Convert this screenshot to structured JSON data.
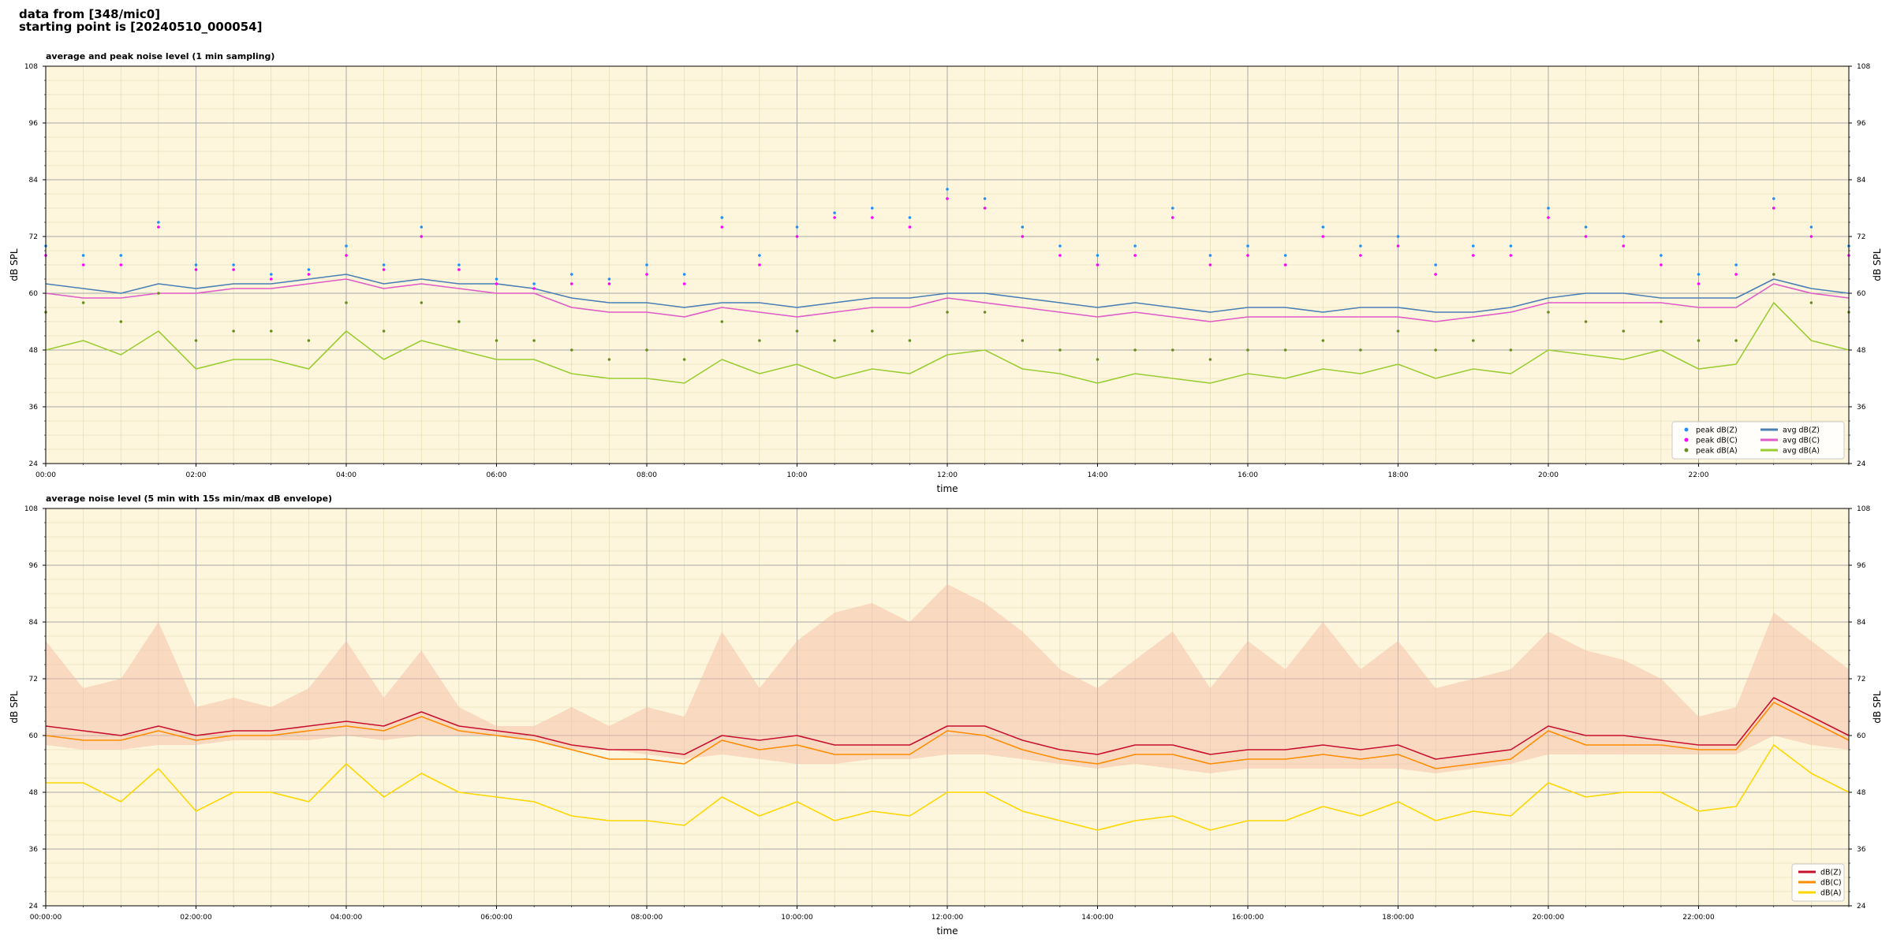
{
  "header": {
    "line1": "data from [348/mic0]",
    "line2": "starting point is [20240510_000054]"
  },
  "chart_data": [
    {
      "type": "line",
      "title": "average and peak noise level (1 min sampling)",
      "xlabel": "time",
      "ylabel": "dB SPL",
      "xlim": [
        0,
        24
      ],
      "ylim": [
        24,
        108
      ],
      "yticks": [
        24,
        36,
        48,
        60,
        72,
        84,
        96,
        108
      ],
      "xtick_labels": [
        "00:00",
        "02:00",
        "04:00",
        "06:00",
        "08:00",
        "10:00",
        "12:00",
        "14:00",
        "16:00",
        "18:00",
        "20:00",
        "22:00"
      ],
      "grid": true,
      "legend_position": "lower-right",
      "background": "#fdf6dc",
      "x": [
        0,
        0.5,
        1,
        1.5,
        2,
        2.5,
        3,
        3.5,
        4,
        4.5,
        5,
        5.5,
        6,
        6.5,
        7,
        7.5,
        8,
        8.5,
        9,
        9.5,
        10,
        10.5,
        11,
        11.5,
        12,
        12.5,
        13,
        13.5,
        14,
        14.5,
        15,
        15.5,
        16,
        16.5,
        17,
        17.5,
        18,
        18.5,
        19,
        19.5,
        20,
        20.5,
        21,
        21.5,
        22,
        22.5,
        23,
        23.5,
        24
      ],
      "series": [
        {
          "name": "avg dB(Z)",
          "style": "line",
          "color": "#4a7fb5",
          "values": [
            62,
            61,
            60,
            62,
            61,
            62,
            62,
            63,
            64,
            62,
            63,
            62,
            62,
            61,
            59,
            58,
            58,
            57,
            58,
            58,
            57,
            58,
            59,
            59,
            60,
            60,
            59,
            58,
            57,
            58,
            57,
            56,
            57,
            57,
            56,
            57,
            57,
            56,
            56,
            57,
            59,
            60,
            60,
            59,
            59,
            59,
            63,
            61,
            60
          ]
        },
        {
          "name": "avg dB(C)",
          "style": "line",
          "color": "#e05ac8",
          "values": [
            60,
            59,
            59,
            60,
            60,
            61,
            61,
            62,
            63,
            61,
            62,
            61,
            60,
            60,
            57,
            56,
            56,
            55,
            57,
            56,
            55,
            56,
            57,
            57,
            59,
            58,
            57,
            56,
            55,
            56,
            55,
            54,
            55,
            55,
            55,
            55,
            55,
            54,
            55,
            56,
            58,
            58,
            58,
            58,
            57,
            57,
            62,
            60,
            59
          ]
        },
        {
          "name": "avg dB(A)",
          "style": "line",
          "color": "#9acd32",
          "values": [
            48,
            50,
            47,
            52,
            44,
            46,
            46,
            44,
            52,
            46,
            50,
            48,
            46,
            46,
            43,
            42,
            42,
            41,
            46,
            43,
            45,
            42,
            44,
            43,
            47,
            48,
            44,
            43,
            41,
            43,
            42,
            41,
            43,
            42,
            44,
            43,
            45,
            42,
            44,
            43,
            48,
            47,
            46,
            48,
            44,
            45,
            58,
            50,
            48
          ]
        },
        {
          "name": "peak dB(Z)",
          "style": "points",
          "color": "#1e90ff",
          "values": [
            70,
            68,
            68,
            75,
            66,
            66,
            64,
            65,
            70,
            66,
            74,
            66,
            63,
            62,
            64,
            63,
            66,
            64,
            76,
            68,
            74,
            77,
            78,
            76,
            82,
            80,
            74,
            70,
            68,
            70,
            78,
            68,
            70,
            68,
            74,
            70,
            72,
            66,
            70,
            70,
            78,
            74,
            72,
            68,
            64,
            66,
            80,
            74,
            70
          ]
        },
        {
          "name": "peak dB(C)",
          "style": "points",
          "color": "#ff00ff",
          "values": [
            68,
            66,
            66,
            74,
            65,
            65,
            63,
            64,
            68,
            65,
            72,
            65,
            62,
            61,
            62,
            62,
            64,
            62,
            74,
            66,
            72,
            76,
            76,
            74,
            80,
            78,
            72,
            68,
            66,
            68,
            76,
            66,
            68,
            66,
            72,
            68,
            70,
            64,
            68,
            68,
            76,
            72,
            70,
            66,
            62,
            64,
            78,
            72,
            68
          ]
        },
        {
          "name": "peak dB(A)",
          "style": "points",
          "color": "#6b8e23",
          "values": [
            56,
            58,
            54,
            60,
            50,
            52,
            52,
            50,
            58,
            52,
            58,
            54,
            50,
            50,
            48,
            46,
            48,
            46,
            54,
            50,
            52,
            50,
            52,
            50,
            56,
            56,
            50,
            48,
            46,
            48,
            48,
            46,
            48,
            48,
            50,
            48,
            52,
            48,
            50,
            48,
            56,
            54,
            52,
            54,
            50,
            50,
            64,
            58,
            56
          ]
        }
      ],
      "legend": [
        {
          "label": "peak dB(Z)",
          "color": "#1e90ff",
          "kind": "point"
        },
        {
          "label": "peak dB(C)",
          "color": "#ff00ff",
          "kind": "point"
        },
        {
          "label": "peak dB(A)",
          "color": "#6b8e23",
          "kind": "point"
        },
        {
          "label": "avg dB(Z)",
          "color": "#4a7fb5",
          "kind": "line"
        },
        {
          "label": "avg dB(C)",
          "color": "#e05ac8",
          "kind": "line"
        },
        {
          "label": "avg dB(A)",
          "color": "#9acd32",
          "kind": "line"
        }
      ]
    },
    {
      "type": "line",
      "title": "average noise level (5 min with 15s min/max dB envelope)",
      "xlabel": "time",
      "ylabel": "dB SPL",
      "xlim": [
        0,
        24
      ],
      "ylim": [
        24,
        108
      ],
      "yticks": [
        24,
        36,
        48,
        60,
        72,
        84,
        96,
        108
      ],
      "xtick_labels": [
        "00:00:00",
        "02:00:00",
        "04:00:00",
        "06:00:00",
        "08:00:00",
        "10:00:00",
        "12:00:00",
        "14:00:00",
        "16:00:00",
        "18:00:00",
        "20:00:00",
        "22:00:00"
      ],
      "grid": true,
      "legend_position": "lower-right",
      "background": "#fdf6dc",
      "x": [
        0,
        0.5,
        1,
        1.5,
        2,
        2.5,
        3,
        3.5,
        4,
        4.5,
        5,
        5.5,
        6,
        6.5,
        7,
        7.5,
        8,
        8.5,
        9,
        9.5,
        10,
        10.5,
        11,
        11.5,
        12,
        12.5,
        13,
        13.5,
        14,
        14.5,
        15,
        15.5,
        16,
        16.5,
        17,
        17.5,
        18,
        18.5,
        19,
        19.5,
        20,
        20.5,
        21,
        21.5,
        22,
        22.5,
        23,
        23.5,
        24
      ],
      "envelope": {
        "color": "#f4b9a0",
        "max": [
          80,
          70,
          72,
          84,
          66,
          68,
          66,
          70,
          80,
          68,
          78,
          66,
          62,
          62,
          66,
          62,
          66,
          64,
          82,
          70,
          80,
          86,
          88,
          84,
          92,
          88,
          82,
          74,
          70,
          76,
          82,
          70,
          80,
          74,
          84,
          74,
          80,
          70,
          72,
          74,
          82,
          78,
          76,
          72,
          64,
          66,
          86,
          80,
          74
        ],
        "min": [
          58,
          57,
          57,
          58,
          58,
          59,
          59,
          59,
          60,
          59,
          60,
          60,
          60,
          59,
          57,
          57,
          56,
          55,
          56,
          55,
          54,
          54,
          55,
          55,
          56,
          56,
          55,
          54,
          53,
          54,
          53,
          52,
          53,
          53,
          53,
          53,
          53,
          52,
          53,
          54,
          56,
          56,
          56,
          56,
          56,
          56,
          60,
          58,
          57
        ]
      },
      "series": [
        {
          "name": "dB(Z)",
          "color": "#c8102e",
          "values": [
            62,
            61,
            60,
            62,
            60,
            61,
            61,
            62,
            63,
            62,
            65,
            62,
            61,
            60,
            58,
            57,
            57,
            56,
            60,
            59,
            60,
            58,
            58,
            58,
            62,
            62,
            59,
            57,
            56,
            58,
            58,
            56,
            57,
            57,
            58,
            57,
            58,
            55,
            56,
            57,
            62,
            60,
            60,
            59,
            58,
            58,
            68,
            64,
            60
          ]
        },
        {
          "name": "dB(C)",
          "color": "#ff8c00",
          "values": [
            60,
            59,
            59,
            61,
            59,
            60,
            60,
            61,
            62,
            61,
            64,
            61,
            60,
            59,
            57,
            55,
            55,
            54,
            59,
            57,
            58,
            56,
            56,
            56,
            61,
            60,
            57,
            55,
            54,
            56,
            56,
            54,
            55,
            55,
            56,
            55,
            56,
            53,
            54,
            55,
            61,
            58,
            58,
            58,
            57,
            57,
            67,
            63,
            59
          ]
        },
        {
          "name": "dB(A)",
          "color": "#ffd700",
          "values": [
            50,
            50,
            46,
            53,
            44,
            48,
            48,
            46,
            54,
            47,
            52,
            48,
            47,
            46,
            43,
            42,
            42,
            41,
            47,
            43,
            46,
            42,
            44,
            43,
            48,
            48,
            44,
            42,
            40,
            42,
            43,
            40,
            42,
            42,
            45,
            43,
            46,
            42,
            44,
            43,
            50,
            47,
            48,
            48,
            44,
            45,
            58,
            52,
            48
          ]
        }
      ],
      "legend": [
        {
          "label": "dB(Z)",
          "color": "#c8102e",
          "kind": "line"
        },
        {
          "label": "dB(C)",
          "color": "#ff8c00",
          "kind": "line"
        },
        {
          "label": "dB(A)",
          "color": "#ffd700",
          "kind": "line"
        }
      ]
    }
  ]
}
